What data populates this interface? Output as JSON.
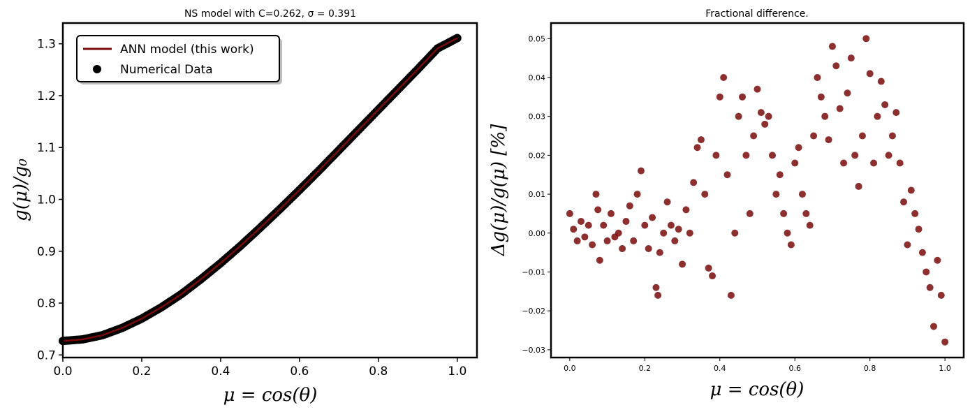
{
  "chart_data": [
    {
      "type": "line",
      "title": "NS model with C=0.262, σ = 0.391",
      "xlabel": "μ = cos(θ)",
      "ylabel": "g(μ)/g₀",
      "xlim": [
        0.0,
        1.05
      ],
      "ylim": [
        0.695,
        1.34
      ],
      "xticks": [
        "0.0",
        "0.2",
        "0.4",
        "0.6",
        "0.8",
        "1.0"
      ],
      "yticks": [
        "0.7",
        "0.8",
        "0.9",
        "1.0",
        "1.1",
        "1.2",
        "1.3"
      ],
      "legend_position": "top-left",
      "legend": [
        "ANN model (this work)",
        "Numerical Data"
      ],
      "colors": {
        "model_line": "#7a0a0a",
        "data_points": "#000000"
      },
      "series": [
        {
          "name": "ANN model (this work)",
          "kind": "line",
          "x": [
            0.0,
            0.05,
            0.1,
            0.15,
            0.2,
            0.25,
            0.3,
            0.35,
            0.4,
            0.45,
            0.5,
            0.55,
            0.6,
            0.65,
            0.7,
            0.75,
            0.8,
            0.85,
            0.9,
            0.95,
            1.0
          ],
          "y": [
            0.727,
            0.73,
            0.738,
            0.752,
            0.77,
            0.792,
            0.817,
            0.846,
            0.877,
            0.91,
            0.945,
            0.981,
            1.018,
            1.056,
            1.095,
            1.134,
            1.173,
            1.212,
            1.251,
            1.291,
            1.311
          ]
        },
        {
          "name": "Numerical Data",
          "kind": "scatter",
          "x": [
            0.0,
            0.05,
            0.1,
            0.15,
            0.2,
            0.25,
            0.3,
            0.35,
            0.4,
            0.45,
            0.5,
            0.55,
            0.6,
            0.65,
            0.7,
            0.75,
            0.8,
            0.85,
            0.9,
            0.95,
            1.0
          ],
          "y": [
            0.727,
            0.73,
            0.738,
            0.752,
            0.77,
            0.792,
            0.817,
            0.846,
            0.877,
            0.91,
            0.945,
            0.981,
            1.018,
            1.056,
            1.095,
            1.134,
            1.173,
            1.212,
            1.251,
            1.291,
            1.311
          ]
        }
      ]
    },
    {
      "type": "scatter",
      "title": "Fractional difference.",
      "xlabel": "μ = cos(θ)",
      "ylabel": "Δg(μ)/g(μ)  [%]",
      "xlim": [
        -0.05,
        1.05
      ],
      "ylim": [
        -0.032,
        0.054
      ],
      "xticks": [
        "0.0",
        "0.2",
        "0.4",
        "0.6",
        "0.8",
        "1.0"
      ],
      "yticks": [
        "−0.03",
        "−0.02",
        "−0.01",
        "0.00",
        "0.01",
        "0.02",
        "0.03",
        "0.04",
        "0.05"
      ],
      "colors": {
        "points": "#7a0a0a"
      },
      "series": [
        {
          "x": [
            0.0,
            0.01,
            0.02,
            0.03,
            0.04,
            0.05,
            0.06,
            0.07,
            0.075,
            0.08,
            0.09,
            0.1,
            0.11,
            0.12,
            0.13,
            0.14,
            0.15,
            0.16,
            0.17,
            0.18,
            0.19,
            0.2,
            0.21,
            0.22,
            0.23,
            0.235,
            0.24,
            0.25,
            0.26,
            0.27,
            0.28,
            0.29,
            0.3,
            0.31,
            0.32,
            0.33,
            0.34,
            0.35,
            0.36,
            0.37,
            0.38,
            0.39,
            0.4,
            0.41,
            0.42,
            0.43,
            0.44,
            0.45,
            0.46,
            0.47,
            0.48,
            0.49,
            0.5,
            0.51,
            0.52,
            0.53,
            0.54,
            0.55,
            0.56,
            0.57,
            0.58,
            0.59,
            0.6,
            0.61,
            0.62,
            0.63,
            0.64,
            0.65,
            0.66,
            0.67,
            0.68,
            0.69,
            0.7,
            0.71,
            0.72,
            0.73,
            0.74,
            0.75,
            0.76,
            0.77,
            0.78,
            0.79,
            0.8,
            0.81,
            0.82,
            0.83,
            0.84,
            0.85,
            0.86,
            0.87,
            0.88,
            0.89,
            0.9,
            0.91,
            0.92,
            0.93,
            0.94,
            0.95,
            0.96,
            0.97,
            0.98,
            0.99,
            1.0
          ],
          "y": [
            0.005,
            0.001,
            -0.002,
            0.003,
            -0.001,
            0.002,
            -0.003,
            0.01,
            0.006,
            -0.007,
            0.002,
            -0.002,
            0.005,
            -0.001,
            0.0,
            -0.004,
            0.003,
            0.007,
            -0.002,
            0.01,
            0.016,
            0.002,
            -0.004,
            0.004,
            -0.014,
            -0.016,
            -0.005,
            0.0,
            0.008,
            0.002,
            -0.002,
            0.001,
            -0.008,
            0.006,
            0.0,
            0.013,
            0.022,
            0.024,
            0.01,
            -0.009,
            -0.011,
            0.02,
            0.035,
            0.04,
            0.015,
            -0.016,
            0.0,
            0.03,
            0.035,
            0.02,
            0.005,
            0.025,
            0.037,
            0.031,
            0.028,
            0.03,
            0.02,
            0.01,
            0.015,
            0.005,
            0.0,
            -0.003,
            0.018,
            0.022,
            0.01,
            0.005,
            0.002,
            0.025,
            0.04,
            0.035,
            0.03,
            0.024,
            0.048,
            0.043,
            0.032,
            0.018,
            0.036,
            0.045,
            0.02,
            0.012,
            0.025,
            0.05,
            0.041,
            0.018,
            0.03,
            0.039,
            0.033,
            0.02,
            0.025,
            0.031,
            0.018,
            0.008,
            -0.003,
            0.011,
            0.005,
            0.001,
            -0.005,
            -0.01,
            -0.014,
            -0.024,
            -0.007,
            -0.016,
            -0.028
          ]
        }
      ]
    }
  ]
}
